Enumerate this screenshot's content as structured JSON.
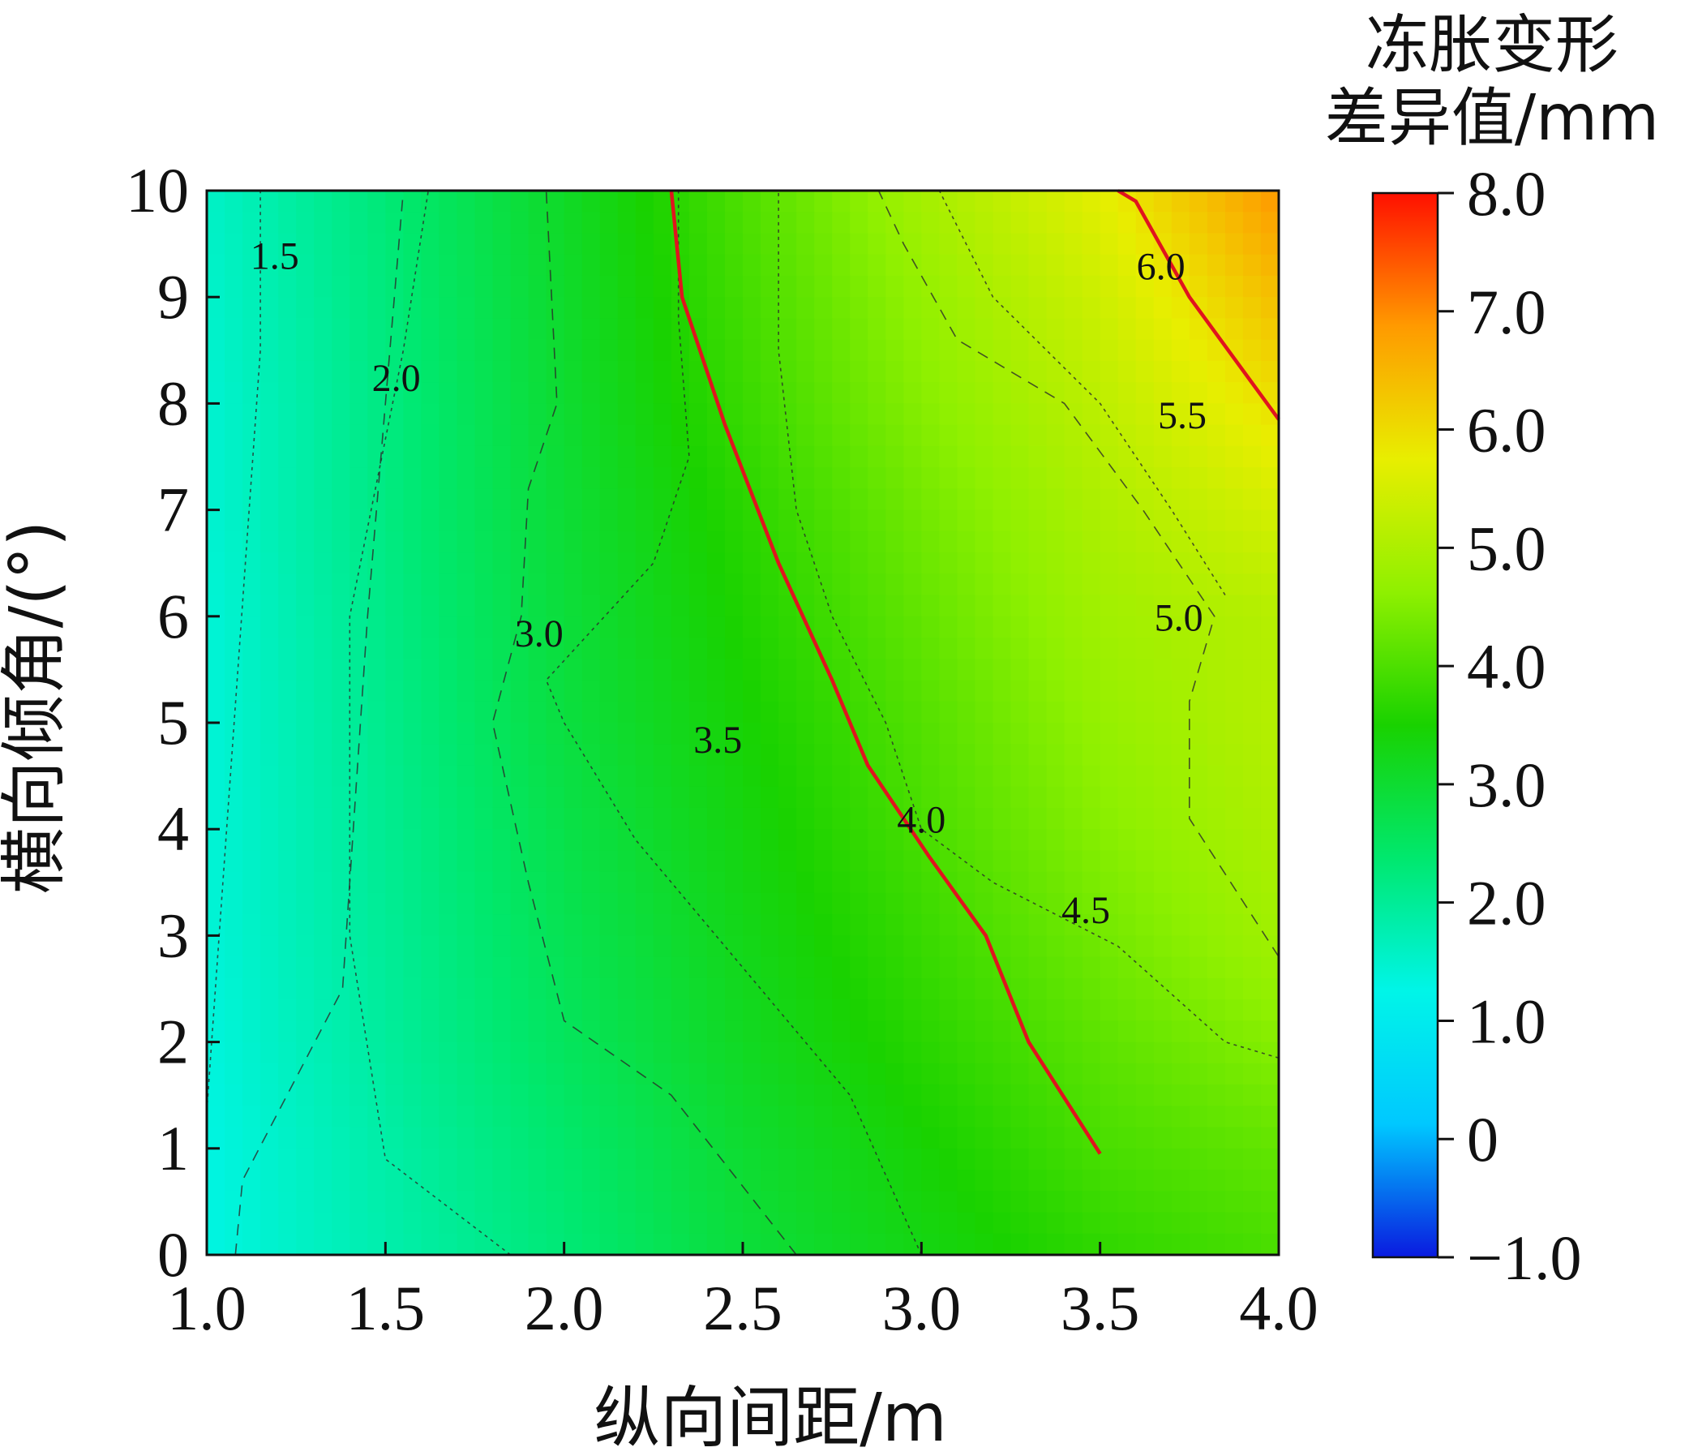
{
  "chart_data": {
    "type": "contour",
    "xlabel": "纵向间距/m",
    "ylabel": "横向倾角/(°)",
    "xlim": [
      1.0,
      4.0
    ],
    "ylim": [
      0,
      10
    ],
    "x_ticks": [
      "1.0",
      "1.5",
      "2.0",
      "2.5",
      "3.0",
      "3.5",
      "4.0"
    ],
    "y_ticks": [
      "0",
      "1",
      "2",
      "3",
      "4",
      "5",
      "6",
      "7",
      "8",
      "9",
      "10"
    ],
    "colorbar": {
      "title_line1": "冻胀变形",
      "title_line2": "差异值/mm",
      "range": [
        -1.0,
        8.0
      ],
      "ticks": [
        "−1.0",
        "0",
        "1.0",
        "2.0",
        "3.0",
        "4.0",
        "5.0",
        "6.0",
        "7.0",
        "8.0"
      ],
      "colors": [
        "#0a1adf",
        "#00c8ff",
        "#00f5e8",
        "#00e86e",
        "#19d200",
        "#8ff000",
        "#e8ee00",
        "#ff9a00",
        "#ff1000"
      ]
    },
    "grid": false,
    "legend": "colorbar-right",
    "contours": [
      {
        "level": 1.5,
        "label": "1.5",
        "label_pos": [
          1.19,
          9.35
        ],
        "points": [
          [
            1.0,
            1.35
          ],
          [
            1.15,
            8.5
          ],
          [
            1.15,
            10.0
          ]
        ]
      },
      {
        "level": 2.0,
        "label": "2.0",
        "label_pos": [
          1.53,
          8.2
        ],
        "points": [
          [
            1.08,
            0.0
          ],
          [
            1.1,
            0.7
          ],
          [
            1.38,
            2.5
          ],
          [
            1.45,
            6.0
          ],
          [
            1.5,
            8.0
          ],
          [
            1.55,
            10.0
          ]
        ]
      },
      {
        "level": 2.5,
        "label": "",
        "label_pos": null,
        "points": [
          [
            1.85,
            0.0
          ],
          [
            1.5,
            0.9
          ],
          [
            1.4,
            3.0
          ],
          [
            1.4,
            6.0
          ],
          [
            1.55,
            8.5
          ],
          [
            1.62,
            10.0
          ]
        ]
      },
      {
        "level": 3.0,
        "label": "3.0",
        "label_pos": [
          1.93,
          5.8
        ],
        "points": [
          [
            2.65,
            0.0
          ],
          [
            2.3,
            1.5
          ],
          [
            2.0,
            2.2
          ],
          [
            1.9,
            3.5
          ],
          [
            1.8,
            5.0
          ],
          [
            1.88,
            6.0
          ],
          [
            1.9,
            7.2
          ],
          [
            1.98,
            8.0
          ],
          [
            1.95,
            10.0
          ]
        ]
      },
      {
        "level": 3.5,
        "label": "3.5",
        "label_pos": [
          2.43,
          4.8
        ],
        "points": [
          [
            3.0,
            0.0
          ],
          [
            2.8,
            1.5
          ],
          [
            2.5,
            2.7
          ],
          [
            2.2,
            3.9
          ],
          [
            2.0,
            5.0
          ],
          [
            1.95,
            5.4
          ],
          [
            2.25,
            6.5
          ],
          [
            2.35,
            7.5
          ],
          [
            2.32,
            8.8
          ],
          [
            2.32,
            10.0
          ]
        ]
      },
      {
        "level": 4.0,
        "label": "4.0",
        "label_pos": [
          3.0,
          4.05
        ],
        "points": [
          [
            3.5,
            0.95
          ],
          [
            3.3,
            2.0
          ],
          [
            3.18,
            3.0
          ],
          [
            3.02,
            3.75
          ],
          [
            2.85,
            4.6
          ],
          [
            2.75,
            5.4
          ],
          [
            2.6,
            6.5
          ],
          [
            2.45,
            7.8
          ],
          [
            2.33,
            9.0
          ],
          [
            2.3,
            10.0
          ]
        ]
      },
      {
        "level": 4.5,
        "label": "4.5",
        "label_pos": [
          3.46,
          3.2
        ],
        "points": [
          [
            4.0,
            1.85
          ],
          [
            3.85,
            2.0
          ],
          [
            3.55,
            2.9
          ],
          [
            3.2,
            3.5
          ],
          [
            3.0,
            4.0
          ],
          [
            2.9,
            5.0
          ],
          [
            2.75,
            6.0
          ],
          [
            2.65,
            7.0
          ],
          [
            2.6,
            8.5
          ],
          [
            2.6,
            10.0
          ]
        ]
      },
      {
        "level": 5.0,
        "label": "5.0",
        "label_pos": [
          3.72,
          5.95
        ],
        "points": [
          [
            4.0,
            2.8
          ],
          [
            3.75,
            4.1
          ],
          [
            3.75,
            5.2
          ],
          [
            3.82,
            6.0
          ],
          [
            3.62,
            7.0
          ],
          [
            3.4,
            8.0
          ],
          [
            3.1,
            8.6
          ],
          [
            2.95,
            9.5
          ],
          [
            2.88,
            10.0
          ]
        ]
      },
      {
        "level": 5.5,
        "label": "5.5",
        "label_pos": [
          3.73,
          7.85
        ],
        "points": [
          [
            3.85,
            6.2
          ],
          [
            3.7,
            7.0
          ],
          [
            3.5,
            8.0
          ],
          [
            3.2,
            9.0
          ],
          [
            3.05,
            10.0
          ]
        ]
      },
      {
        "level": 6.0,
        "label": "6.0",
        "label_pos": [
          3.67,
          9.25
        ],
        "points": [
          [
            4.0,
            7.85
          ],
          [
            3.75,
            9.0
          ],
          [
            3.6,
            9.9
          ],
          [
            3.55,
            10.0
          ]
        ]
      }
    ],
    "value_field": [
      [
        1.3,
        1.8,
        2.3,
        2.9,
        3.3,
        3.7,
        3.95
      ],
      [
        1.3,
        1.85,
        2.4,
        3.0,
        3.45,
        3.95,
        4.2
      ],
      [
        1.35,
        1.95,
        2.55,
        3.15,
        3.65,
        4.15,
        4.55
      ],
      [
        1.4,
        2.0,
        2.65,
        3.25,
        3.8,
        4.35,
        4.85
      ],
      [
        1.4,
        2.05,
        2.75,
        3.35,
        3.95,
        4.55,
        5.0
      ],
      [
        1.4,
        2.1,
        2.85,
        3.45,
        4.05,
        4.7,
        5.1
      ],
      [
        1.4,
        2.15,
        2.9,
        3.55,
        4.2,
        4.85,
        5.1
      ],
      [
        1.45,
        2.2,
        2.95,
        3.65,
        4.35,
        5.0,
        5.5
      ],
      [
        1.45,
        2.2,
        3.0,
        3.8,
        4.55,
        5.2,
        5.95
      ],
      [
        1.5,
        2.25,
        3.05,
        3.9,
        4.7,
        5.4,
        6.4
      ],
      [
        1.55,
        2.3,
        3.1,
        4.0,
        4.9,
        5.7,
        6.9
      ]
    ]
  }
}
